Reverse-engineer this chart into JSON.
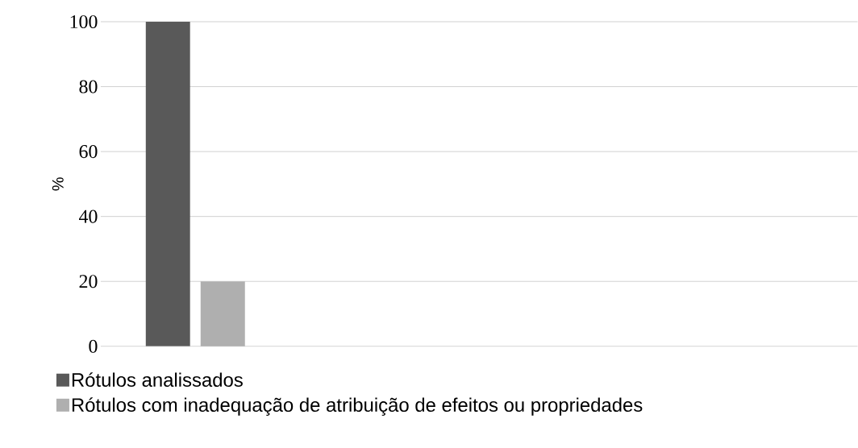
{
  "chart_data": {
    "type": "bar",
    "ylabel": "%",
    "categories": [
      null,
      null,
      null,
      null
    ],
    "series": [
      {
        "name": "Rótulos analissados",
        "color": "#595959",
        "values": [
          100,
          null,
          null,
          null
        ]
      },
      {
        "name": "Rótulos com inadequação de atribuição de efeitos ou propriedades",
        "color": "#afafaf",
        "values": [
          20,
          null,
          null,
          null
        ]
      }
    ],
    "ylim": [
      0,
      100
    ],
    "yticks": [
      0,
      20,
      40,
      60,
      80,
      100
    ],
    "grid": "y",
    "legend": "bottom"
  }
}
